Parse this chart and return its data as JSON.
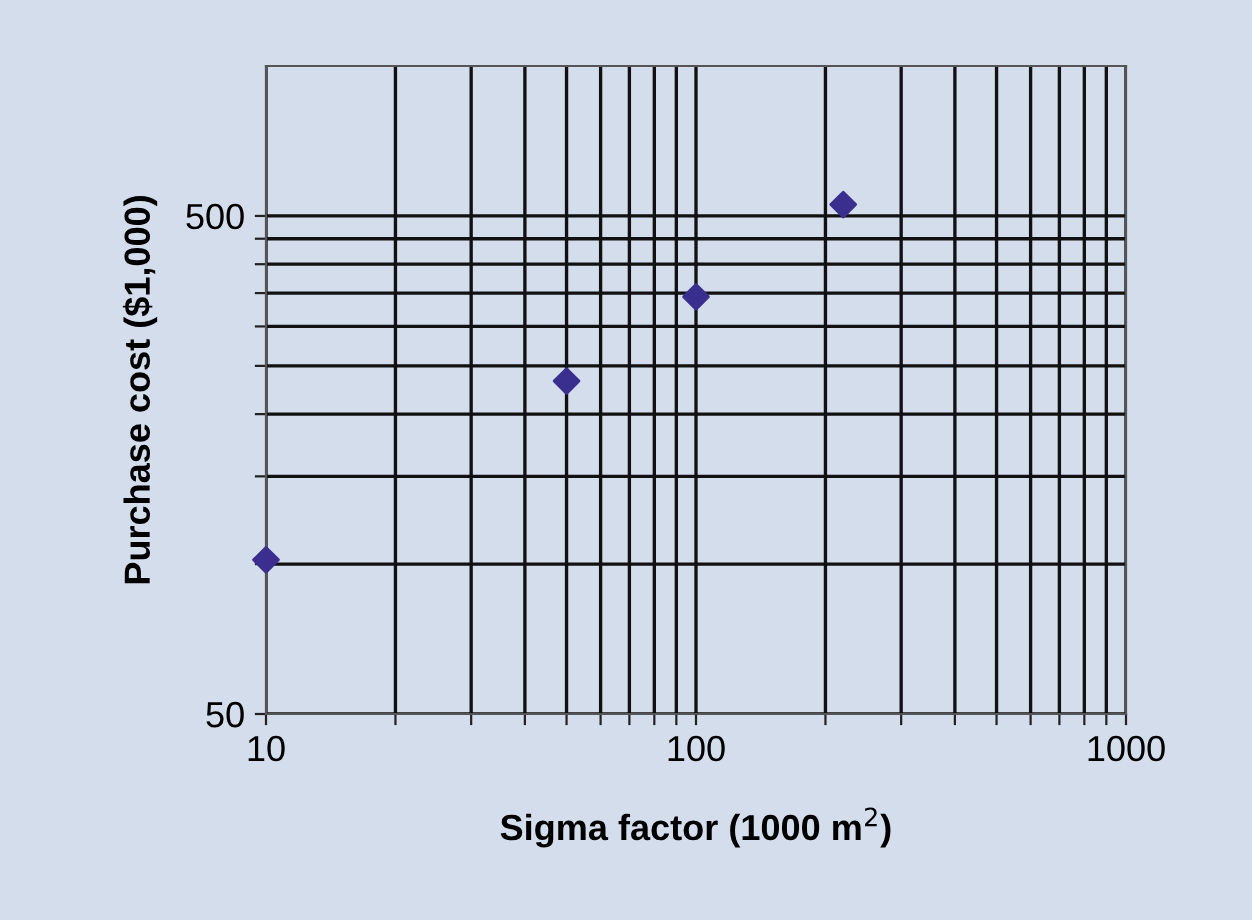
{
  "chart_data": {
    "type": "scatter",
    "xlabel": "Sigma factor (1000 m$^{2}$)",
    "ylabel": "Purchase cost ($1,000)",
    "x": [
      10,
      50,
      100,
      220
    ],
    "series": [
      {
        "color": "#3a2f8f",
        "values": [
          102,
          233,
          344,
          527
        ]
      }
    ],
    "marker": "diamond",
    "log": "xy",
    "grid": true,
    "xlim": [
      10,
      1000
    ],
    "ylim": [
      50,
      1000
    ],
    "xticks": [
      10,
      {
        "value": 20,
        "label": null
      },
      {
        "value": 30,
        "label": null
      },
      {
        "value": 40,
        "label": null
      },
      {
        "value": 50,
        "label": null
      },
      {
        "value": 60,
        "label": null
      },
      {
        "value": 70,
        "label": null
      },
      {
        "value": 80,
        "label": null
      },
      {
        "value": 90,
        "label": null
      },
      100,
      {
        "value": 200,
        "label": null
      },
      {
        "value": 300,
        "label": null
      },
      {
        "value": 400,
        "label": null
      },
      {
        "value": 500,
        "label": null
      },
      {
        "value": 600,
        "label": null
      },
      {
        "value": 700,
        "label": null
      },
      {
        "value": 800,
        "label": null
      },
      {
        "value": 900,
        "label": null
      },
      1000
    ],
    "yticks": [
      50,
      {
        "value": 100,
        "label": null
      },
      {
        "value": 150,
        "label": null
      },
      {
        "value": 200,
        "label": null
      },
      {
        "value": 250,
        "label": null
      },
      {
        "value": 300,
        "label": null
      },
      {
        "value": 350,
        "label": null
      },
      {
        "value": 400,
        "label": null
      },
      {
        "value": 450,
        "label": null
      },
      500
    ]
  }
}
